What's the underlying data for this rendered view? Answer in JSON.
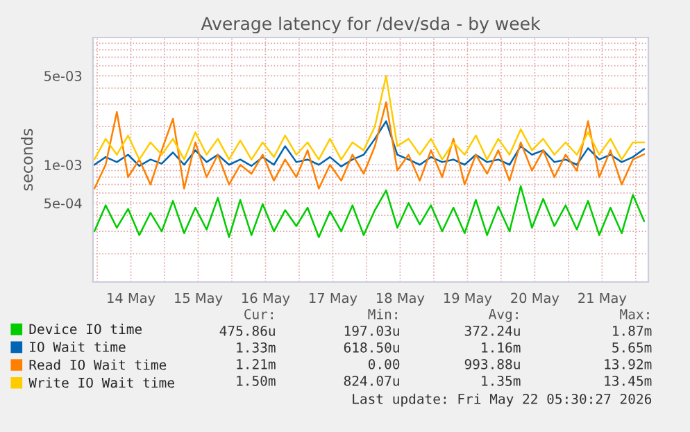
{
  "chart_data": {
    "type": "line",
    "title": "Average latency for /dev/sda - by week",
    "ylabel": "seconds",
    "log": true,
    "ylim": [
      0.00012,
      0.01
    ],
    "yticks": [
      {
        "value": 0.0002,
        "label": null
      },
      {
        "value": 0.0003,
        "label": null
      },
      {
        "value": 0.0004,
        "label": null
      },
      {
        "value": 0.0005,
        "label": "5e-04"
      },
      {
        "value": 0.0006,
        "label": null
      },
      {
        "value": 0.0007,
        "label": null
      },
      {
        "value": 0.0008,
        "label": null
      },
      {
        "value": 0.0009,
        "label": null
      },
      {
        "value": 0.001,
        "label": "1e-03"
      },
      {
        "value": 0.002,
        "label": null
      },
      {
        "value": 0.003,
        "label": null
      },
      {
        "value": 0.004,
        "label": null
      },
      {
        "value": 0.005,
        "label": "5e-03"
      },
      {
        "value": 0.006,
        "label": null
      },
      {
        "value": 0.007,
        "label": null
      },
      {
        "value": 0.008,
        "label": null
      },
      {
        "value": 0.009,
        "label": null
      }
    ],
    "xlim": [
      "2026-05-13T22:30",
      "2026-05-22T04:30"
    ],
    "xticks": [
      {
        "value": "2026-05-14T00:00",
        "label": null
      },
      {
        "value": "2026-05-14T12:00",
        "label": "14 May"
      },
      {
        "value": "2026-05-15T00:00",
        "label": null
      },
      {
        "value": "2026-05-15T12:00",
        "label": "15 May"
      },
      {
        "value": "2026-05-16T00:00",
        "label": null
      },
      {
        "value": "2026-05-16T12:00",
        "label": "16 May"
      },
      {
        "value": "2026-05-17T00:00",
        "label": null
      },
      {
        "value": "2026-05-17T12:00",
        "label": "17 May"
      },
      {
        "value": "2026-05-18T00:00",
        "label": null
      },
      {
        "value": "2026-05-18T12:00",
        "label": "18 May"
      },
      {
        "value": "2026-05-19T00:00",
        "label": null
      },
      {
        "value": "2026-05-19T12:00",
        "label": "19 May"
      },
      {
        "value": "2026-05-20T00:00",
        "label": null
      },
      {
        "value": "2026-05-20T12:00",
        "label": "20 May"
      },
      {
        "value": "2026-05-21T00:00",
        "label": null
      },
      {
        "value": "2026-05-21T12:00",
        "label": "21 May"
      },
      {
        "value": "2026-05-22T00:00",
        "label": null
      }
    ],
    "grid": true,
    "legend": "bottom",
    "marker": "none",
    "line_style": "solid",
    "x": [
      "2026-05-13T23:00",
      "2026-05-14T03:00",
      "2026-05-14T07:00",
      "2026-05-14T11:00",
      "2026-05-14T15:00",
      "2026-05-14T19:00",
      "2026-05-14T23:00",
      "2026-05-15T03:00",
      "2026-05-15T07:00",
      "2026-05-15T11:00",
      "2026-05-15T15:00",
      "2026-05-15T19:00",
      "2026-05-15T23:00",
      "2026-05-16T03:00",
      "2026-05-16T07:00",
      "2026-05-16T11:00",
      "2026-05-16T15:00",
      "2026-05-16T19:00",
      "2026-05-16T23:00",
      "2026-05-17T03:00",
      "2026-05-17T07:00",
      "2026-05-17T11:00",
      "2026-05-17T15:00",
      "2026-05-17T19:00",
      "2026-05-17T23:00",
      "2026-05-18T03:00",
      "2026-05-18T07:00",
      "2026-05-18T11:00",
      "2026-05-18T15:00",
      "2026-05-18T19:00",
      "2026-05-18T23:00",
      "2026-05-19T03:00",
      "2026-05-19T07:00",
      "2026-05-19T11:00",
      "2026-05-19T15:00",
      "2026-05-19T19:00",
      "2026-05-19T23:00",
      "2026-05-20T03:00",
      "2026-05-20T07:00",
      "2026-05-20T11:00",
      "2026-05-20T15:00",
      "2026-05-20T19:00",
      "2026-05-20T23:00",
      "2026-05-21T03:00",
      "2026-05-21T07:00",
      "2026-05-21T11:00",
      "2026-05-21T15:00",
      "2026-05-21T19:00",
      "2026-05-21T23:00",
      "2026-05-22T03:00"
    ],
    "series": [
      {
        "name": "Device IO time",
        "color": "#00cc00",
        "values": [
          0.0003,
          0.00048,
          0.00032,
          0.00045,
          0.00028,
          0.00042,
          0.0003,
          0.00052,
          0.00029,
          0.00046,
          0.00031,
          0.00055,
          0.00027,
          0.00053,
          0.00028,
          0.00049,
          0.0003,
          0.00044,
          0.00033,
          0.00046,
          0.00027,
          0.00043,
          0.0003,
          0.00048,
          0.00028,
          0.00044,
          0.00063,
          0.00032,
          0.0005,
          0.00034,
          0.00048,
          0.0003,
          0.00046,
          0.00029,
          0.00053,
          0.00028,
          0.00047,
          0.0003,
          0.00068,
          0.00032,
          0.00054,
          0.00033,
          0.00048,
          0.00031,
          0.00052,
          0.00028,
          0.00046,
          0.00029,
          0.00058,
          0.00036
        ]
      },
      {
        "name": "IO Wait time",
        "color": "#0066b3",
        "values": [
          0.001,
          0.00115,
          0.00105,
          0.0012,
          0.00098,
          0.0011,
          0.00102,
          0.00125,
          0.001,
          0.0013,
          0.00105,
          0.0012,
          0.001,
          0.0011,
          0.00098,
          0.00115,
          0.001,
          0.0014,
          0.00105,
          0.0011,
          0.001,
          0.00115,
          0.00097,
          0.0011,
          0.0012,
          0.0016,
          0.0022,
          0.0012,
          0.0011,
          0.001,
          0.00115,
          0.00105,
          0.0011,
          0.001,
          0.0012,
          0.00105,
          0.0011,
          0.001,
          0.0014,
          0.0012,
          0.0013,
          0.00105,
          0.0011,
          0.001,
          0.00135,
          0.0011,
          0.0012,
          0.00105,
          0.00115,
          0.00133
        ]
      },
      {
        "name": "Read IO Wait time",
        "color": "#ff8000",
        "values": [
          0.00065,
          0.001,
          0.0026,
          0.0008,
          0.0011,
          0.0007,
          0.0013,
          0.0023,
          0.00065,
          0.0015,
          0.0008,
          0.0012,
          0.0007,
          0.001,
          0.00085,
          0.0012,
          0.00075,
          0.0011,
          0.0008,
          0.0013,
          0.00065,
          0.001,
          0.00075,
          0.0012,
          0.00085,
          0.0014,
          0.0031,
          0.0009,
          0.0012,
          0.00075,
          0.0013,
          0.0008,
          0.0016,
          0.0007,
          0.0012,
          0.00085,
          0.0013,
          0.00075,
          0.0015,
          0.0009,
          0.0013,
          0.0008,
          0.0012,
          0.0009,
          0.0022,
          0.0008,
          0.0013,
          0.0007,
          0.0011,
          0.00121
        ]
      },
      {
        "name": "Write IO Wait time",
        "color": "#ffcc00",
        "values": [
          0.0011,
          0.0016,
          0.0012,
          0.0017,
          0.0011,
          0.0015,
          0.0012,
          0.0016,
          0.0011,
          0.0018,
          0.0012,
          0.0016,
          0.0011,
          0.00155,
          0.0011,
          0.0015,
          0.00115,
          0.0017,
          0.0012,
          0.0015,
          0.0011,
          0.0016,
          0.0011,
          0.0015,
          0.0013,
          0.002,
          0.005,
          0.0014,
          0.0016,
          0.0012,
          0.0016,
          0.0011,
          0.0015,
          0.0012,
          0.0017,
          0.0011,
          0.0016,
          0.0012,
          0.0019,
          0.0013,
          0.0016,
          0.0012,
          0.0015,
          0.0012,
          0.0018,
          0.0012,
          0.0016,
          0.0011,
          0.0015,
          0.0015
        ]
      }
    ],
    "annotations": [
      "Cur:",
      "Min:",
      "Avg:",
      "Max:",
      "475.86u",
      "197.03u",
      "372.24u",
      "1.87m",
      "1.33m",
      "618.50u",
      "1.16m",
      "5.65m",
      "1.21m",
      "0.00",
      "993.88u",
      "13.92m",
      "1.50m",
      "824.07u",
      "1.35m",
      "13.45m",
      "Last update: Fri May 22 05:30:27 2026"
    ]
  }
}
